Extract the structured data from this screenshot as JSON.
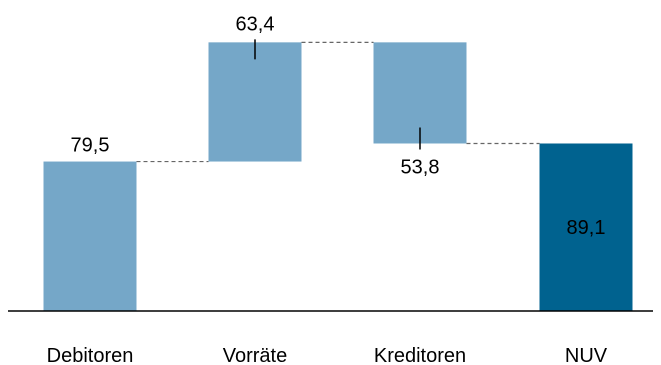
{
  "chart_data": {
    "type": "bar",
    "subtype": "waterfall",
    "categories": [
      "Debitoren",
      "Vorräte",
      "Kreditoren",
      "NUV"
    ],
    "values": [
      79.5,
      63.4,
      -53.8,
      89.1
    ],
    "value_labels": [
      "79,5",
      "63,4",
      "53,8",
      "89,1"
    ],
    "bar_kinds": [
      "increase",
      "increase",
      "decrease",
      "total"
    ],
    "title": "",
    "xlabel": "",
    "ylabel": "",
    "ylim": [
      0,
      150
    ],
    "grid": false,
    "legend": "none",
    "colors": {
      "step": "#75A7C8",
      "total": "#00628F",
      "connector": "#666666",
      "axis": "#000000",
      "label_inside": "#ffffff",
      "label_outside": "#000000"
    }
  }
}
